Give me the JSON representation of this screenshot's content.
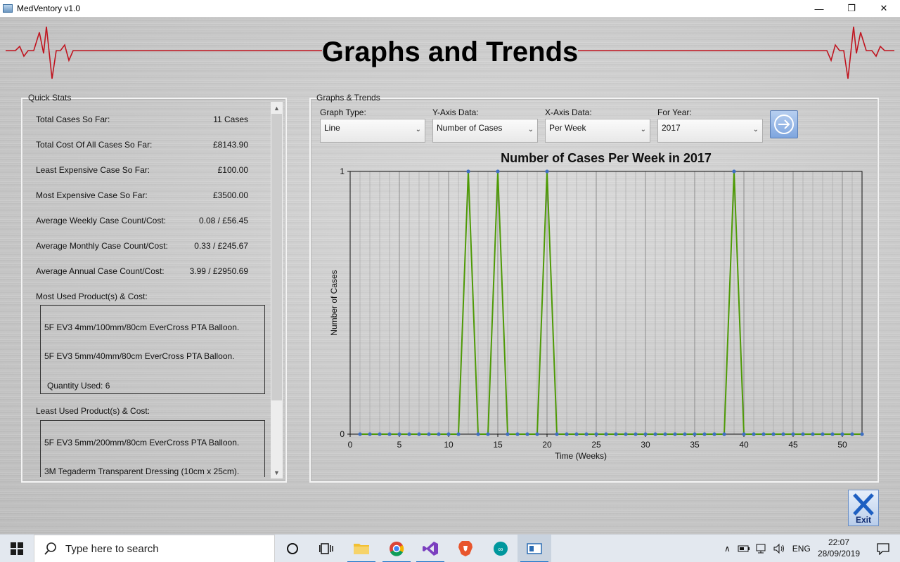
{
  "window": {
    "title": "MedVentory v1.0",
    "minimize": "—",
    "maximize": "❐",
    "close": "✕"
  },
  "page_title": "Graphs and Trends",
  "quick_stats": {
    "legend": "Quick Stats",
    "rows": [
      {
        "label": "Total Cases So Far:",
        "value": "11 Cases"
      },
      {
        "label": "Total Cost Of All Cases So Far:",
        "value": "£8143.90"
      },
      {
        "label": "Least Expensive Case So Far:",
        "value": "£100.00"
      },
      {
        "label": "Most Expensive Case So Far:",
        "value": "£3500.00"
      },
      {
        "label": "Average Weekly Case Count/Cost:",
        "value": "0.08 / £56.45"
      },
      {
        "label": "Average Monthly Case Count/Cost:",
        "value": "0.33 / £245.67"
      },
      {
        "label": "Average Annual Case Count/Cost:",
        "value": "3.99 / £2950.69"
      }
    ],
    "most_used_heading": "Most Used Product(s) & Cost:",
    "most_used": {
      "line1": "5F EV3 4mm/100mm/80cm EverCross PTA Balloon.",
      "line2": "5F EV3 5mm/40mm/80cm EverCross PTA Balloon.",
      "line3": "Quantity Used: 6"
    },
    "least_used_heading": "Least Used Product(s) & Cost:",
    "least_used": {
      "line1": "5F EV3 5mm/200mm/80cm EverCross PTA Balloon.",
      "line2": "3M Tegaderm Transparent Dressing (10cm x 25cm)."
    }
  },
  "graphs": {
    "legend": "Graphs & Trends",
    "graph_type": {
      "label": "Graph Type:",
      "value": "Line"
    },
    "y_axis": {
      "label": "Y-Axis Data:",
      "value": "Number of Cases"
    },
    "x_axis": {
      "label": "X-Axis Data:",
      "value": "Per Week"
    },
    "year": {
      "label": "For Year:",
      "value": "2017"
    },
    "go_icon": "arrow-right-circle-icon"
  },
  "chart_data": {
    "type": "line",
    "title": "Number of Cases Per Week in 2017",
    "xlabel": "Time (Weeks)",
    "ylabel": "Number of Cases",
    "xlim": [
      0,
      52
    ],
    "ylim": [
      0,
      1
    ],
    "x_ticks": [
      "0",
      "5",
      "10",
      "15",
      "20",
      "25",
      "30",
      "35",
      "40",
      "45",
      "50"
    ],
    "y_ticks": [
      "0",
      "1"
    ],
    "grid": true,
    "colors": {
      "line": "#4e9a06",
      "marker": "#3f6fc2"
    },
    "series": [
      {
        "x": [
          1,
          2,
          3,
          4,
          5,
          6,
          7,
          8,
          9,
          10,
          11,
          12,
          13,
          14,
          15,
          16,
          17,
          18,
          19,
          20,
          21,
          22,
          23,
          24,
          25,
          26,
          27,
          28,
          29,
          30,
          31,
          32,
          33,
          34,
          35,
          36,
          37,
          38,
          39,
          40,
          41,
          42,
          43,
          44,
          45,
          46,
          47,
          48,
          49,
          50,
          51,
          52
        ],
        "values": [
          0,
          0,
          0,
          0,
          0,
          0,
          0,
          0,
          0,
          0,
          0,
          1,
          0,
          0,
          1,
          0,
          0,
          0,
          0,
          1,
          0,
          0,
          0,
          0,
          0,
          0,
          0,
          0,
          0,
          0,
          0,
          0,
          0,
          0,
          0,
          0,
          0,
          0,
          1,
          0,
          0,
          0,
          0,
          0,
          0,
          0,
          0,
          0,
          0,
          0,
          0,
          0
        ]
      }
    ]
  },
  "exit_button": {
    "label": "Exit"
  },
  "taskbar": {
    "search_placeholder": "Type here to search",
    "language": "ENG",
    "time": "22:07",
    "date": "28/09/2019"
  },
  "colors": {
    "ecg": "#c0141f",
    "accent": "#1a73c9"
  }
}
